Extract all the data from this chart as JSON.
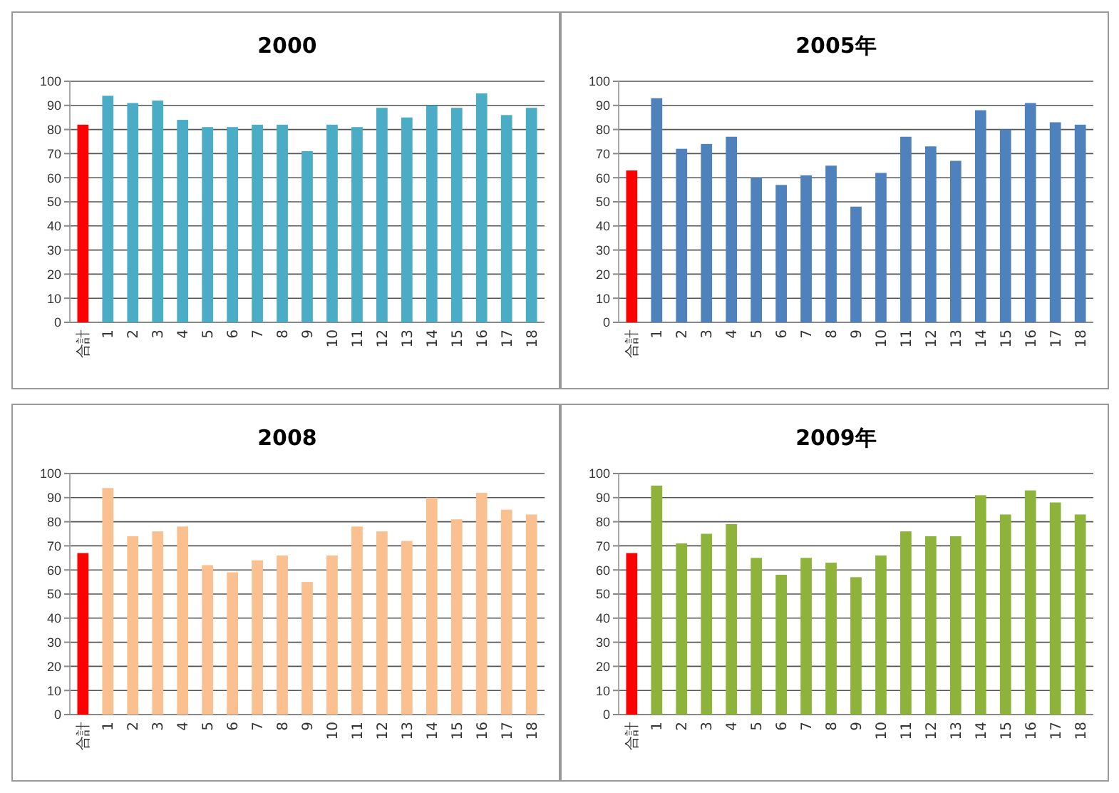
{
  "chart_data": [
    {
      "type": "bar",
      "title": "2000",
      "categories": [
        "合計",
        "1",
        "2",
        "3",
        "4",
        "5",
        "6",
        "7",
        "8",
        "9",
        "10",
        "11",
        "12",
        "13",
        "14",
        "15",
        "16",
        "17",
        "18"
      ],
      "values": [
        82,
        94,
        91,
        92,
        84,
        81,
        81,
        82,
        82,
        71,
        82,
        81,
        89,
        85,
        90,
        89,
        95,
        86,
        89
      ],
      "colors": [
        "#ff0000",
        "#4bacc6",
        "#4bacc6",
        "#4bacc6",
        "#4bacc6",
        "#4bacc6",
        "#4bacc6",
        "#4bacc6",
        "#4bacc6",
        "#4bacc6",
        "#4bacc6",
        "#4bacc6",
        "#4bacc6",
        "#4bacc6",
        "#4bacc6",
        "#4bacc6",
        "#4bacc6",
        "#4bacc6",
        "#4bacc6"
      ],
      "ylim": [
        0,
        100
      ],
      "yticks": [
        0,
        10,
        20,
        30,
        40,
        50,
        60,
        70,
        80,
        90,
        100
      ],
      "grid": "y"
    },
    {
      "type": "bar",
      "title": "2005年",
      "categories": [
        "合計",
        "1",
        "2",
        "3",
        "4",
        "5",
        "6",
        "7",
        "8",
        "9",
        "10",
        "11",
        "12",
        "13",
        "14",
        "15",
        "16",
        "17",
        "18"
      ],
      "values": [
        63,
        93,
        72,
        74,
        77,
        60,
        57,
        61,
        65,
        48,
        62,
        77,
        73,
        67,
        88,
        80,
        91,
        83,
        82
      ],
      "colors": [
        "#ff0000",
        "#4f81bd",
        "#4f81bd",
        "#4f81bd",
        "#4f81bd",
        "#4f81bd",
        "#4f81bd",
        "#4f81bd",
        "#4f81bd",
        "#4f81bd",
        "#4f81bd",
        "#4f81bd",
        "#4f81bd",
        "#4f81bd",
        "#4f81bd",
        "#4f81bd",
        "#4f81bd",
        "#4f81bd",
        "#4f81bd"
      ],
      "ylim": [
        0,
        100
      ],
      "yticks": [
        0,
        10,
        20,
        30,
        40,
        50,
        60,
        70,
        80,
        90,
        100
      ],
      "grid": "y"
    },
    {
      "type": "bar",
      "title": "2008",
      "categories": [
        "合計",
        "1",
        "2",
        "3",
        "4",
        "5",
        "6",
        "7",
        "8",
        "9",
        "10",
        "11",
        "12",
        "13",
        "14",
        "15",
        "16",
        "17",
        "18"
      ],
      "values": [
        67,
        94,
        74,
        76,
        78,
        62,
        59,
        64,
        66,
        55,
        66,
        78,
        76,
        72,
        90,
        81,
        92,
        85,
        83
      ],
      "colors": [
        "#ff0000",
        "#fac090",
        "#fac090",
        "#fac090",
        "#fac090",
        "#fac090",
        "#fac090",
        "#fac090",
        "#fac090",
        "#fac090",
        "#fac090",
        "#fac090",
        "#fac090",
        "#fac090",
        "#fac090",
        "#fac090",
        "#fac090",
        "#fac090",
        "#fac090"
      ],
      "ylim": [
        0,
        100
      ],
      "yticks": [
        0,
        10,
        20,
        30,
        40,
        50,
        60,
        70,
        80,
        90,
        100
      ],
      "grid": "y"
    },
    {
      "type": "bar",
      "title": "2009年",
      "categories": [
        "合計",
        "1",
        "2",
        "3",
        "4",
        "5",
        "6",
        "7",
        "8",
        "9",
        "10",
        "11",
        "12",
        "13",
        "14",
        "15",
        "16",
        "17",
        "18"
      ],
      "values": [
        67,
        95,
        71,
        75,
        79,
        65,
        58,
        65,
        63,
        57,
        66,
        76,
        74,
        74,
        91,
        83,
        93,
        88,
        83
      ],
      "colors": [
        "#ff0000",
        "#8db33a",
        "#8db33a",
        "#8db33a",
        "#8db33a",
        "#8db33a",
        "#8db33a",
        "#8db33a",
        "#8db33a",
        "#8db33a",
        "#8db33a",
        "#8db33a",
        "#8db33a",
        "#8db33a",
        "#8db33a",
        "#8db33a",
        "#8db33a",
        "#8db33a",
        "#8db33a"
      ],
      "ylim": [
        0,
        100
      ],
      "yticks": [
        0,
        10,
        20,
        30,
        40,
        50,
        60,
        70,
        80,
        90,
        100
      ],
      "grid": "y"
    }
  ]
}
